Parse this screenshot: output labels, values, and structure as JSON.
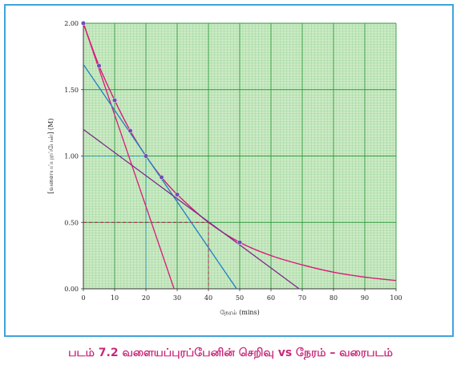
{
  "caption": "படம் 7.2  வளையப்புரப்பேனின் செறிவு vs நேரம்  – வரைபடம்",
  "chart_data": {
    "type": "line",
    "xlabel": "நேரம் (mins)",
    "ylabel": "[வளையப்புரப்பேன்] (M)",
    "xlim": [
      0,
      100
    ],
    "ylim": [
      0,
      2.0
    ],
    "x_ticks": [
      "0",
      "10",
      "20",
      "30",
      "40",
      "50",
      "60",
      "70",
      "80",
      "90",
      "100"
    ],
    "y_ticks": [
      "0.00",
      "0.50",
      "1.00",
      "1.50",
      "2.00"
    ],
    "grid": true,
    "legend": "none",
    "series": [
      {
        "kind": "decay-curve",
        "color": "#d81b7a",
        "points": [
          [
            0,
            2.0
          ],
          [
            5,
            1.68
          ],
          [
            10,
            1.42
          ],
          [
            15,
            1.19
          ],
          [
            20,
            1.0
          ],
          [
            25,
            0.84
          ],
          [
            30,
            0.71
          ],
          [
            40,
            0.5
          ],
          [
            50,
            0.35
          ],
          [
            60,
            0.25
          ],
          [
            70,
            0.18
          ],
          [
            80,
            0.125
          ],
          [
            90,
            0.088
          ],
          [
            100,
            0.062
          ]
        ]
      },
      {
        "kind": "data-points",
        "color": "#6a4fb0",
        "points": [
          [
            0,
            2.0
          ],
          [
            5,
            1.68
          ],
          [
            10,
            1.42
          ],
          [
            15,
            1.19
          ],
          [
            20,
            1.0
          ],
          [
            25,
            0.84
          ],
          [
            30,
            0.71
          ],
          [
            50,
            0.35
          ]
        ]
      },
      {
        "kind": "tangent-line",
        "color": "#d81b7a",
        "points": [
          [
            0,
            2.0
          ],
          [
            29,
            0.0
          ]
        ]
      },
      {
        "kind": "tangent-line",
        "color": "#1f7fc4",
        "points": [
          [
            0,
            1.69
          ],
          [
            49,
            0.0
          ]
        ]
      },
      {
        "kind": "tangent-line",
        "color": "#7a2a8a",
        "points": [
          [
            0,
            1.2
          ],
          [
            69,
            0.0
          ]
        ]
      }
    ],
    "guides": [
      {
        "color": "#1a9be0",
        "from": [
          0,
          1.0
        ],
        "corner": [
          20,
          1.0
        ],
        "to": [
          20,
          0.0
        ]
      },
      {
        "color": "#b0184a",
        "from": [
          0,
          0.5
        ],
        "corner": [
          40,
          0.5
        ],
        "to": [
          40,
          0.0
        ]
      }
    ],
    "colors": {
      "grid_fill": "#cdebc6",
      "grid_minor": "#8fce8f",
      "grid_major": "#2a9a3a",
      "frame": "#3fa3dc"
    }
  }
}
